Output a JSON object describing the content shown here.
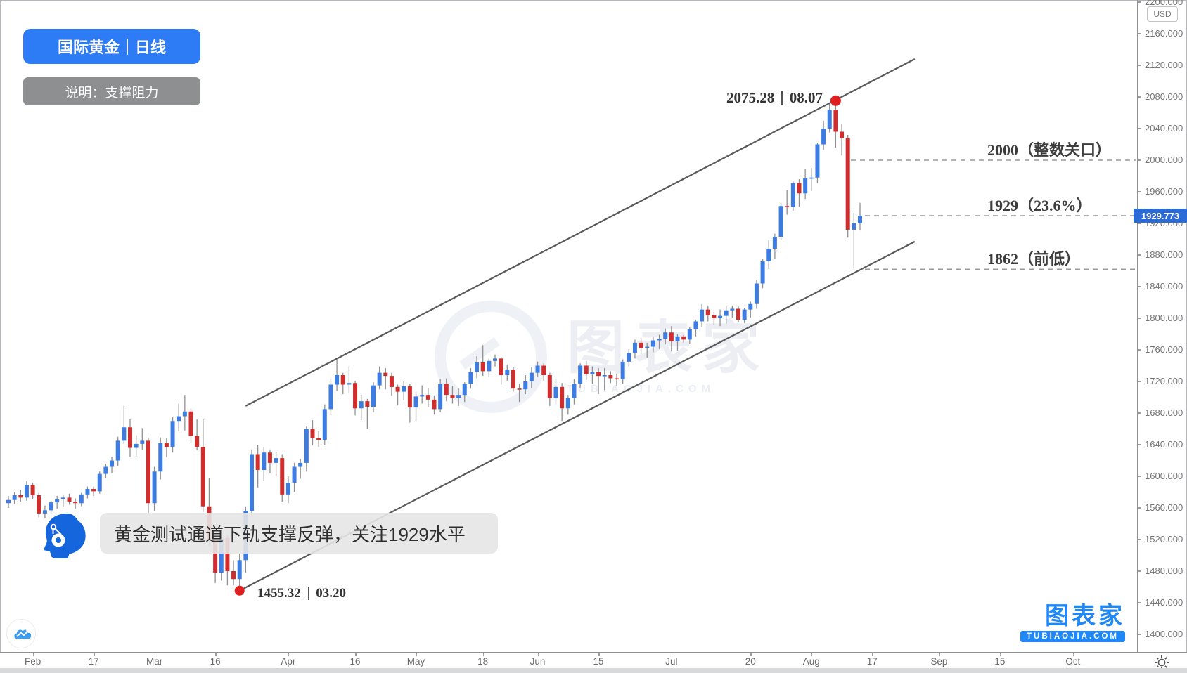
{
  "header": {
    "title": "国际黄金｜日线",
    "subtitle": "说明：支撑阻力"
  },
  "callout": {
    "text": "黄金测试通道下轨支撑反弹，关注1929水平"
  },
  "markers": {
    "high": {
      "price_text": "2075.28",
      "date_text": "08.07"
    },
    "low": {
      "price_text": "1455.32",
      "date_text": "03.20"
    }
  },
  "axis": {
    "currency_badge": "USD",
    "last_price": "1929.773",
    "price_max": 2200,
    "price_min": 1400,
    "price_step": 40,
    "price_decimals": 3,
    "time_ticks": [
      {
        "label": "Feb",
        "day": 4
      },
      {
        "label": "17",
        "day": 14
      },
      {
        "label": "Mar",
        "day": 24
      },
      {
        "label": "16",
        "day": 34
      },
      {
        "label": "Apr",
        "day": 46
      },
      {
        "label": "16",
        "day": 57
      },
      {
        "label": "May",
        "day": 67
      },
      {
        "label": "18",
        "day": 78
      },
      {
        "label": "Jun",
        "day": 87
      },
      {
        "label": "15",
        "day": 97
      },
      {
        "label": "Jul",
        "day": 109
      },
      {
        "label": "20",
        "day": 122
      },
      {
        "label": "Aug",
        "day": 132
      },
      {
        "label": "17",
        "day": 142
      },
      {
        "label": "Sep",
        "day": 153
      },
      {
        "label": "15",
        "day": 163
      },
      {
        "label": "Oct",
        "day": 175
      }
    ]
  },
  "watermark": {
    "text": "图表家",
    "domain": "TUBIAOJIA.COM"
  },
  "brand": {
    "name": "图表家",
    "domain": "TUBIAOJIA.COM"
  },
  "chart_data": {
    "type": "candlestick",
    "title": "国际黄金｜日线",
    "unit": "USD",
    "ylim": [
      1400,
      2200
    ],
    "y_tick_step": 40,
    "up_color": "#3d7ce0",
    "down_color": "#d02e2e",
    "wick_color": "#909090",
    "trendline_color": "#58595b",
    "level_line_color": "#9a9a9a",
    "last_close": 1929.773,
    "annotations": {
      "high_marker": {
        "price": 2075.28,
        "day": 136,
        "label": "2075.28 | 08.07"
      },
      "low_marker": {
        "price": 1455.32,
        "day": 38,
        "label": "1455.32 | 03.20"
      }
    },
    "levels": [
      {
        "price": 2000,
        "label": "2000（整数关口）"
      },
      {
        "price": 1929.773,
        "label": "1929（23.6%）"
      },
      {
        "price": 1862,
        "label": "1862（前低）"
      }
    ],
    "channel_lines": [
      {
        "name": "upper",
        "from_day": 39,
        "from_price": 1689,
        "to_day": 149,
        "to_price": 2128
      },
      {
        "name": "lower",
        "from_day": 38,
        "from_price": 1455.32,
        "to_day": 149,
        "to_price": 1897
      }
    ],
    "candles_ohlc": [
      [
        1566,
        1575,
        1560,
        1570
      ],
      [
        1570,
        1580,
        1565,
        1576
      ],
      [
        1576,
        1583,
        1568,
        1573
      ],
      [
        1573,
        1594,
        1569,
        1589
      ],
      [
        1589,
        1592,
        1571,
        1576
      ],
      [
        1576,
        1579,
        1548,
        1553
      ],
      [
        1553,
        1563,
        1547,
        1557
      ],
      [
        1557,
        1569,
        1552,
        1567
      ],
      [
        1567,
        1575,
        1559,
        1571
      ],
      [
        1571,
        1577,
        1562,
        1573
      ],
      [
        1573,
        1578,
        1564,
        1568
      ],
      [
        1568,
        1572,
        1559,
        1566
      ],
      [
        1566,
        1579,
        1562,
        1577
      ],
      [
        1577,
        1587,
        1572,
        1584
      ],
      [
        1584,
        1587,
        1575,
        1581
      ],
      [
        1581,
        1606,
        1578,
        1603
      ],
      [
        1603,
        1616,
        1598,
        1612
      ],
      [
        1612,
        1624,
        1604,
        1620
      ],
      [
        1620,
        1650,
        1613,
        1645
      ],
      [
        1645,
        1689,
        1641,
        1662
      ],
      [
        1662,
        1672,
        1624,
        1636
      ],
      [
        1636,
        1652,
        1625,
        1641
      ],
      [
        1641,
        1661,
        1634,
        1645
      ],
      [
        1645,
        1649,
        1552,
        1566
      ],
      [
        1566,
        1612,
        1556,
        1606
      ],
      [
        1606,
        1649,
        1596,
        1642
      ],
      [
        1642,
        1648,
        1624,
        1637
      ],
      [
        1637,
        1675,
        1630,
        1670
      ],
      [
        1670,
        1692,
        1657,
        1676
      ],
      [
        1676,
        1703,
        1658,
        1682
      ],
      [
        1682,
        1686,
        1642,
        1651
      ],
      [
        1651,
        1672,
        1633,
        1637
      ],
      [
        1637,
        1672,
        1555,
        1562
      ],
      [
        1562,
        1598,
        1512,
        1520
      ],
      [
        1520,
        1527,
        1465,
        1478
      ],
      [
        1478,
        1527,
        1468,
        1522
      ],
      [
        1522,
        1526,
        1462,
        1480
      ],
      [
        1480,
        1494,
        1462,
        1470
      ],
      [
        1470,
        1502,
        1455.32,
        1494
      ],
      [
        1494,
        1562,
        1478,
        1556
      ],
      [
        1556,
        1634,
        1550,
        1628
      ],
      [
        1628,
        1640,
        1586,
        1608
      ],
      [
        1608,
        1637,
        1594,
        1630
      ],
      [
        1630,
        1634,
        1604,
        1617
      ],
      [
        1617,
        1631,
        1601,
        1623
      ],
      [
        1623,
        1628,
        1568,
        1577
      ],
      [
        1577,
        1600,
        1566,
        1592
      ],
      [
        1592,
        1617,
        1580,
        1612
      ],
      [
        1612,
        1622,
        1597,
        1617
      ],
      [
        1617,
        1663,
        1606,
        1660
      ],
      [
        1660,
        1671,
        1639,
        1648
      ],
      [
        1648,
        1657,
        1637,
        1646
      ],
      [
        1646,
        1691,
        1640,
        1685
      ],
      [
        1685,
        1723,
        1677,
        1716
      ],
      [
        1716,
        1747,
        1708,
        1728
      ],
      [
        1728,
        1731,
        1704,
        1716
      ],
      [
        1716,
        1739,
        1705,
        1718
      ],
      [
        1718,
        1721,
        1677,
        1686
      ],
      [
        1686,
        1703,
        1671,
        1695
      ],
      [
        1695,
        1698,
        1660,
        1688
      ],
      [
        1688,
        1719,
        1681,
        1715
      ],
      [
        1715,
        1739,
        1710,
        1731
      ],
      [
        1731,
        1737,
        1710,
        1727
      ],
      [
        1727,
        1731,
        1702,
        1713
      ],
      [
        1713,
        1716,
        1690,
        1707
      ],
      [
        1707,
        1720,
        1696,
        1714
      ],
      [
        1714,
        1717,
        1668,
        1687
      ],
      [
        1687,
        1707,
        1670,
        1701
      ],
      [
        1701,
        1715,
        1692,
        1703
      ],
      [
        1703,
        1712,
        1688,
        1697
      ],
      [
        1697,
        1702,
        1678,
        1685
      ],
      [
        1685,
        1723,
        1681,
        1717
      ],
      [
        1717,
        1724,
        1695,
        1703
      ],
      [
        1703,
        1714,
        1692,
        1699
      ],
      [
        1699,
        1711,
        1689,
        1703
      ],
      [
        1703,
        1719,
        1694,
        1717
      ],
      [
        1717,
        1737,
        1711,
        1732
      ],
      [
        1732,
        1752,
        1724,
        1744
      ],
      [
        1744,
        1766,
        1727,
        1733
      ],
      [
        1733,
        1749,
        1726,
        1746
      ],
      [
        1746,
        1754,
        1739,
        1749
      ],
      [
        1749,
        1751,
        1716,
        1728
      ],
      [
        1728,
        1741,
        1721,
        1735
      ],
      [
        1735,
        1738,
        1707,
        1711
      ],
      [
        1711,
        1717,
        1694,
        1710
      ],
      [
        1710,
        1728,
        1704,
        1720
      ],
      [
        1720,
        1738,
        1712,
        1731
      ],
      [
        1731,
        1745,
        1726,
        1740
      ],
      [
        1740,
        1743,
        1721,
        1728
      ],
      [
        1728,
        1731,
        1689,
        1699
      ],
      [
        1699,
        1723,
        1692,
        1713
      ],
      [
        1713,
        1718,
        1670,
        1686
      ],
      [
        1686,
        1703,
        1678,
        1699
      ],
      [
        1699,
        1723,
        1691,
        1717
      ],
      [
        1717,
        1743,
        1711,
        1740
      ],
      [
        1740,
        1746,
        1722,
        1729
      ],
      [
        1729,
        1739,
        1717,
        1732
      ],
      [
        1732,
        1737,
        1704,
        1727
      ],
      [
        1727,
        1737,
        1709,
        1728
      ],
      [
        1728,
        1733,
        1718,
        1724
      ],
      [
        1724,
        1730,
        1714,
        1723
      ],
      [
        1723,
        1748,
        1717,
        1745
      ],
      [
        1745,
        1761,
        1739,
        1756
      ],
      [
        1756,
        1773,
        1749,
        1769
      ],
      [
        1769,
        1775,
        1755,
        1762
      ],
      [
        1762,
        1769,
        1750,
        1764
      ],
      [
        1764,
        1777,
        1757,
        1772
      ],
      [
        1772,
        1779,
        1761,
        1774
      ],
      [
        1774,
        1787,
        1767,
        1782
      ],
      [
        1782,
        1790,
        1758,
        1771
      ],
      [
        1771,
        1780,
        1759,
        1777
      ],
      [
        1777,
        1779,
        1769,
        1773
      ],
      [
        1773,
        1789,
        1768,
        1786
      ],
      [
        1786,
        1798,
        1777,
        1796
      ],
      [
        1796,
        1818,
        1789,
        1811
      ],
      [
        1811,
        1816,
        1796,
        1804
      ],
      [
        1804,
        1808,
        1791,
        1800
      ],
      [
        1800,
        1811,
        1790,
        1803
      ],
      [
        1803,
        1815,
        1793,
        1810
      ],
      [
        1810,
        1816,
        1801,
        1812
      ],
      [
        1812,
        1815,
        1795,
        1798
      ],
      [
        1798,
        1813,
        1794,
        1811
      ],
      [
        1811,
        1821,
        1801,
        1818
      ],
      [
        1818,
        1848,
        1812,
        1844
      ],
      [
        1844,
        1875,
        1838,
        1872
      ],
      [
        1872,
        1899,
        1862,
        1888
      ],
      [
        1888,
        1907,
        1875,
        1903
      ],
      [
        1903,
        1946,
        1899,
        1942
      ],
      [
        1942,
        1962,
        1931,
        1941
      ],
      [
        1941,
        1973,
        1936,
        1971
      ],
      [
        1971,
        1976,
        1941,
        1958
      ],
      [
        1958,
        1989,
        1951,
        1977
      ],
      [
        1977,
        1990,
        1961,
        1978
      ],
      [
        1978,
        2022,
        1971,
        2020
      ],
      [
        2020,
        2050,
        2013,
        2040
      ],
      [
        2040,
        2071,
        2035,
        2064
      ],
      [
        2064,
        2075.28,
        2016,
        2036
      ],
      [
        2036,
        2046,
        2006,
        2028
      ],
      [
        2028,
        2032,
        1902,
        1912
      ],
      [
        1912,
        1933,
        1863,
        1920
      ],
      [
        1920,
        1946,
        1911,
        1929.773
      ]
    ]
  }
}
